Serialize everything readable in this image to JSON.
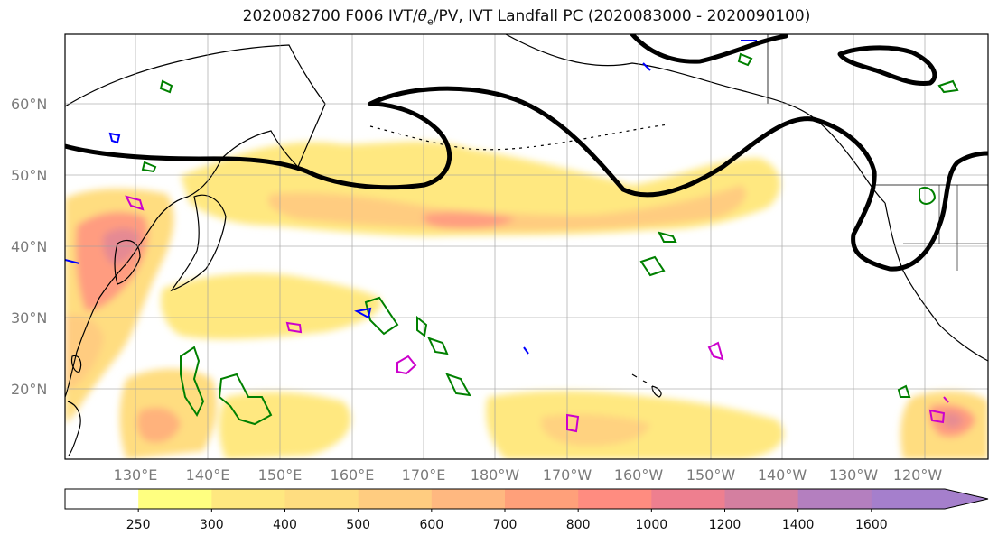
{
  "title_prefix": "2020082700 F006 IVT/",
  "title_theta": "θ",
  "title_theta_sub": "e",
  "title_suffix": "/PV, IVT Landfall PC (2020083000 - 2020090100)",
  "lat_labels": [
    "60°N",
    "50°N",
    "40°N",
    "30°N",
    "20°N"
  ],
  "lon_labels": [
    "130°E",
    "140°E",
    "150°E",
    "160°E",
    "170°E",
    "180°W",
    "170°W",
    "160°W",
    "150°W",
    "140°W",
    "130°W",
    "120°W"
  ],
  "colorbar": {
    "levels": [
      "250",
      "300",
      "400",
      "500",
      "600",
      "700",
      "800",
      "1000",
      "1200",
      "1400",
      "1600"
    ],
    "colors": [
      "#ffffff",
      "#ffff80",
      "#ffe880",
      "#ffdd80",
      "#ffcc80",
      "#ffb880",
      "#ffa07a",
      "#ff8c80",
      "#ee7f8f",
      "#d47fa0",
      "#b47fbf",
      "#a57fcc"
    ]
  },
  "colors": {
    "ivt_light": "#ffff80",
    "ivt_mid": "#ffcc80",
    "ivt_high": "#ff8c80",
    "ivt_peak": "#d47fa0",
    "pv_contour": "#008000",
    "theta_contour": "#0000ff",
    "magenta_contour": "#cc00cc",
    "landfall_contour": "#000000",
    "coastline": "#000000",
    "grid": "#9e9e9e"
  }
}
